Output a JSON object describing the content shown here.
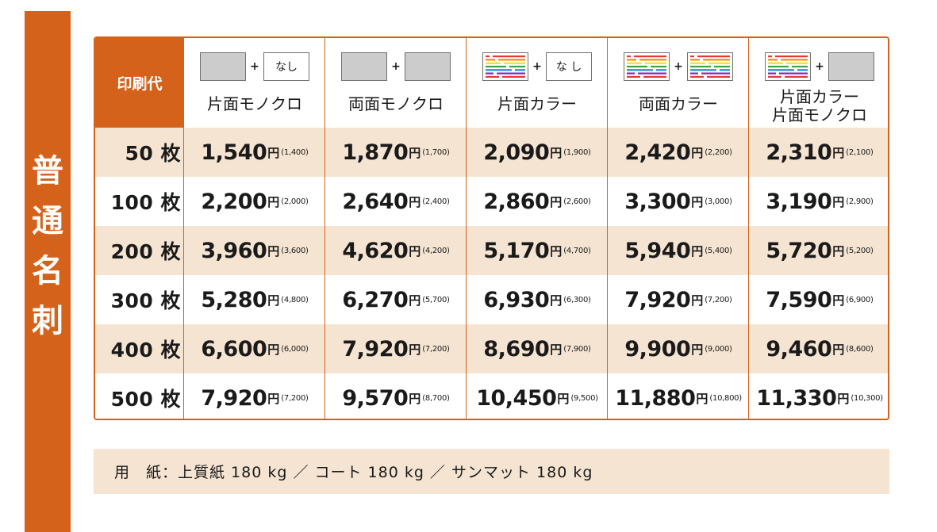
{
  "side_title": [
    "普",
    "通",
    "名",
    "刺"
  ],
  "table": {
    "corner_label": "印刷代",
    "columns": [
      {
        "title": [
          "片面モノクロ"
        ],
        "left_swatch": "mono",
        "right_swatch": "none",
        "none_label": "なし"
      },
      {
        "title": [
          "両面モノクロ"
        ],
        "left_swatch": "mono",
        "right_swatch": "mono"
      },
      {
        "title": [
          "片面カラー"
        ],
        "left_swatch": "color",
        "right_swatch": "none",
        "none_label": "な し"
      },
      {
        "title": [
          "両面カラー"
        ],
        "left_swatch": "color",
        "right_swatch": "color"
      },
      {
        "title": [
          "片面カラー",
          "片面モノクロ"
        ],
        "left_swatch": "color",
        "right_swatch": "mono"
      }
    ],
    "plus": "+",
    "yen": "円",
    "rows": [
      {
        "qty": "50 枚",
        "prices": [
          {
            "main": "1,540",
            "sub": "(1,400)"
          },
          {
            "main": "1,870",
            "sub": "(1,700)"
          },
          {
            "main": "2,090",
            "sub": "(1,900)"
          },
          {
            "main": "2,420",
            "sub": "(2,200)"
          },
          {
            "main": "2,310",
            "sub": "(2,100)"
          }
        ]
      },
      {
        "qty": "100 枚",
        "prices": [
          {
            "main": "2,200",
            "sub": "(2,000)"
          },
          {
            "main": "2,640",
            "sub": "(2,400)"
          },
          {
            "main": "2,860",
            "sub": "(2,600)"
          },
          {
            "main": "3,300",
            "sub": "(3,000)"
          },
          {
            "main": "3,190",
            "sub": "(2,900)"
          }
        ]
      },
      {
        "qty": "200 枚",
        "prices": [
          {
            "main": "3,960",
            "sub": "(3,600)"
          },
          {
            "main": "4,620",
            "sub": "(4,200)"
          },
          {
            "main": "5,170",
            "sub": "(4,700)"
          },
          {
            "main": "5,940",
            "sub": "(5,400)"
          },
          {
            "main": "5,720",
            "sub": "(5,200)"
          }
        ]
      },
      {
        "qty": "300 枚",
        "prices": [
          {
            "main": "5,280",
            "sub": "(4,800)"
          },
          {
            "main": "6,270",
            "sub": "(5,700)"
          },
          {
            "main": "6,930",
            "sub": "(6,300)"
          },
          {
            "main": "7,920",
            "sub": "(7,200)"
          },
          {
            "main": "7,590",
            "sub": "(6,900)"
          }
        ]
      },
      {
        "qty": "400 枚",
        "prices": [
          {
            "main": "6,600",
            "sub": "(6,000)"
          },
          {
            "main": "7,920",
            "sub": "(7,200)"
          },
          {
            "main": "8,690",
            "sub": "(7,900)"
          },
          {
            "main": "9,900",
            "sub": "(9,000)"
          },
          {
            "main": "9,460",
            "sub": "(8,600)"
          }
        ]
      },
      {
        "qty": "500 枚",
        "prices": [
          {
            "main": "7,920",
            "sub": "(7,200)"
          },
          {
            "main": "9,570",
            "sub": "(8,700)"
          },
          {
            "main": "10,450",
            "sub": "(9,500)"
          },
          {
            "main": "11,880",
            "sub": "(10,800)"
          },
          {
            "main": "11,330",
            "sub": "(10,300)"
          }
        ]
      }
    ]
  },
  "paper_note": "用　紙：上質紙 180 kg ／ コート 180 kg ／ サンマット 180 kg",
  "colors": {
    "accent": "#d4621a",
    "row_shade": "#f5e4d2",
    "swatch_gray": "#cccccc"
  }
}
